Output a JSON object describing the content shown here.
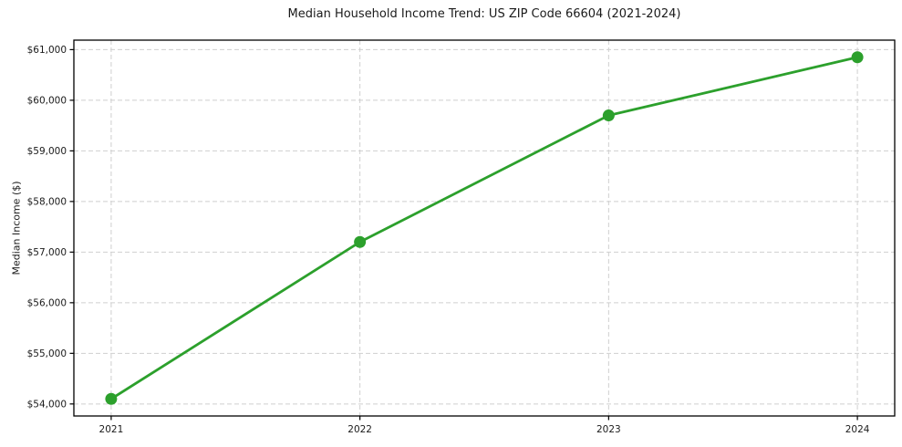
{
  "chart_data": {
    "type": "line",
    "title": "Median Household Income Trend: US ZIP Code 66604 (2021-2024)",
    "xlabel": "",
    "ylabel": "Median Income ($)",
    "x": [
      2021,
      2022,
      2023,
      2024
    ],
    "x_tick_labels": [
      "2021",
      "2022",
      "2023",
      "2024"
    ],
    "values": [
      54100,
      57200,
      59700,
      60850
    ],
    "value_labels": [
      "$54,100",
      "$57,200",
      "$59,700",
      "$60,850"
    ],
    "y_ticks": [
      54000,
      55000,
      56000,
      57000,
      58000,
      59000,
      60000,
      61000
    ],
    "y_tick_labels": [
      "$54,000",
      "$55,000",
      "$56,000",
      "$57,000",
      "$58,000",
      "$59,000",
      "$60,000",
      "$61,000"
    ],
    "xlim": [
      2020.85,
      2024.15
    ],
    "ylim": [
      53762.5,
      61187.5
    ],
    "grid": true,
    "grid_style": "dashed",
    "legend": "none",
    "marker": "circle",
    "colors": {
      "line": "#2ca02c",
      "marker": "#2ca02c",
      "grid": "#cfcfcf",
      "axis": "#000000",
      "text": "#1a1a1a",
      "background": "#ffffff"
    }
  }
}
